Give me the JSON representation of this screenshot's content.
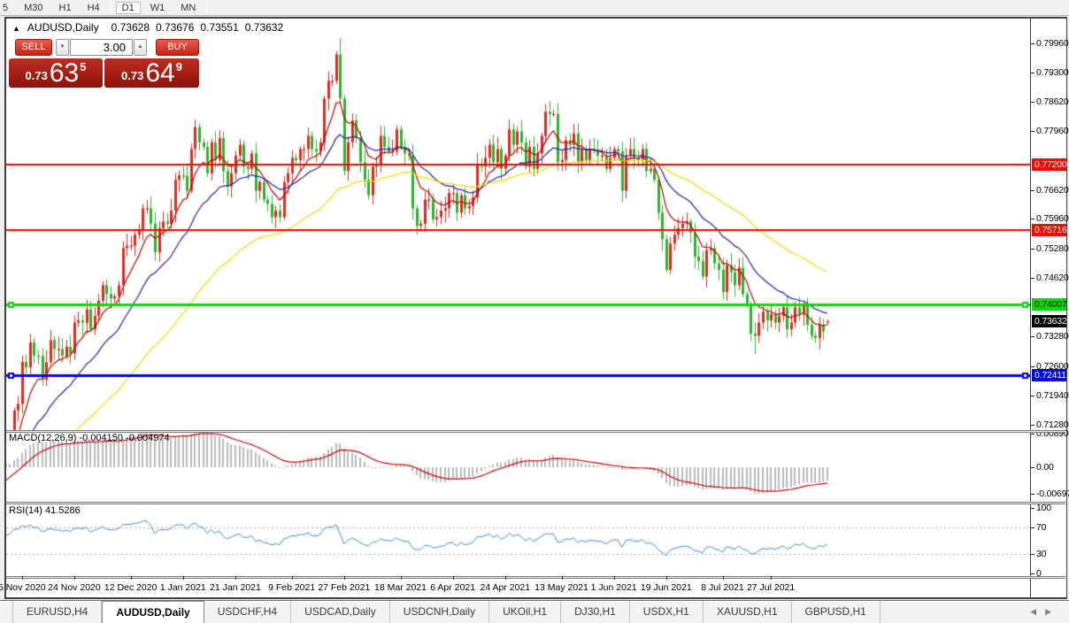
{
  "toolbar": {
    "timeframes": [
      "5",
      "M30",
      "H1",
      "H4",
      "D1",
      "W1",
      "MN"
    ],
    "selected": "D1"
  },
  "chart_header": {
    "collapse_icon": "▲",
    "symbol": "AUDUSD,Daily",
    "open": "0.73628",
    "high": "0.73676",
    "low": "0.73551",
    "close": "0.73632"
  },
  "trade_panel": {
    "sell_label": "SELL",
    "buy_label": "BUY",
    "volume": "3.00",
    "spin_down_icon": "▼",
    "spin_up_icon": "▲",
    "sell_price": {
      "prefix": "0.73",
      "big": "63",
      "sup": "5",
      "full": "0.73635"
    },
    "buy_price": {
      "prefix": "0.73",
      "big": "64",
      "sup": "9",
      "full": "0.73649"
    }
  },
  "price_axis": {
    "ticks": [
      {
        "t": "0.79960",
        "p": 0.7996
      },
      {
        "t": "0.79300",
        "p": 0.793
      },
      {
        "t": "0.78620",
        "p": 0.7862
      },
      {
        "t": "0.77960",
        "p": 0.7796
      },
      {
        "t": "0.76620",
        "p": 0.7662
      },
      {
        "t": "0.75960",
        "p": 0.7596
      },
      {
        "t": "0.75280",
        "p": 0.7528
      },
      {
        "t": "0.74620",
        "p": 0.7462
      },
      {
        "t": "0.73280",
        "p": 0.7328
      },
      {
        "t": "0.72600",
        "p": 0.726
      },
      {
        "t": "0.71940",
        "p": 0.7194
      },
      {
        "t": "0.71280",
        "p": 0.7128
      }
    ],
    "badges": [
      {
        "t": "0.77200",
        "p": 0.772,
        "bg": "#fe0600",
        "fg": "#ffffff"
      },
      {
        "t": "0.75716",
        "p": 0.75716,
        "bg": "#fe0600",
        "fg": "#ffffff"
      },
      {
        "t": "0.74007",
        "p": 0.74007,
        "bg": "#00dc00",
        "fg": "#000000"
      },
      {
        "t": "0.73632",
        "p": 0.73632,
        "bg": "#000000",
        "fg": "#ffffff"
      },
      {
        "t": "0.72411",
        "p": 0.72411,
        "bg": "#0000f0",
        "fg": "#ffffff"
      }
    ]
  },
  "macd_panel": {
    "label": "MACD(12,26,9) -0.004150 -0.004974",
    "ticks": [
      {
        "t": "0.008903",
        "v": 0.008903
      },
      {
        "t": "0.00",
        "v": 0
      },
      {
        "t": "-0.00697",
        "v": -0.00697
      }
    ]
  },
  "rsi_panel": {
    "label": "RSI(14) 41.5286",
    "ticks": [
      {
        "t": "100",
        "v": 100
      },
      {
        "t": "70",
        "v": 70
      },
      {
        "t": "30",
        "v": 30
      },
      {
        "t": "0",
        "v": 0
      }
    ],
    "levels": [
      70,
      30
    ],
    "value": 41.5286
  },
  "tabs": {
    "items": [
      "EURUSD,H4",
      "AUDUSD,Daily",
      "USDCHF,H4",
      "USDCAD,Daily",
      "USDCNH,Daily",
      "UKOil,H1",
      "DJ30,H1",
      "USDX,H1",
      "XAUUSD,H1",
      "GBPUSD,H1"
    ],
    "active_index": 1,
    "nav_left_icon": "◀",
    "nav_right_icon": "▶"
  },
  "chart_data": {
    "type": "candlestick",
    "symbol": "AUDUSD",
    "timeframe": "Daily",
    "grid": false,
    "y_range": {
      "top": 0.80302,
      "bottom": 0.71119
    },
    "last_candle": {
      "o": 0.73628,
      "h": 0.73676,
      "l": 0.73551,
      "c": 0.73632
    },
    "closes": [
      0.7028,
      0.7053,
      0.716,
      0.7175,
      0.7271,
      0.7258,
      0.7315,
      0.7285,
      0.7284,
      0.723,
      0.727,
      0.732,
      0.73,
      0.73,
      0.7285,
      0.7305,
      0.729,
      0.736,
      0.7365,
      0.736,
      0.739,
      0.7345,
      0.7375,
      0.741,
      0.7445,
      0.7425,
      0.7415,
      0.742,
      0.7445,
      0.753,
      0.7535,
      0.7535,
      0.756,
      0.757,
      0.762,
      0.762,
      0.7585,
      0.752,
      0.7575,
      0.759,
      0.7585,
      0.7615,
      0.7685,
      0.7695,
      0.7694,
      0.766,
      0.7755,
      0.7805,
      0.777,
      0.776,
      0.77,
      0.777,
      0.773,
      0.778,
      0.7705,
      0.767,
      0.77,
      0.774,
      0.7765,
      0.7715,
      0.771,
      0.7745,
      0.766,
      0.768,
      0.764,
      0.763,
      0.76,
      0.7615,
      0.76,
      0.768,
      0.77,
      0.7735,
      0.773,
      0.7755,
      0.7755,
      0.7785,
      0.7755,
      0.775,
      0.777,
      0.787,
      0.791,
      0.791,
      0.797,
      0.787,
      0.7705,
      0.777,
      0.782,
      0.778,
      0.7725,
      0.7685,
      0.765,
      0.7715,
      0.772,
      0.7785,
      0.776,
      0.775,
      0.775,
      0.78,
      0.776,
      0.7745,
      0.774,
      0.762,
      0.758,
      0.7585,
      0.764,
      0.764,
      0.7595,
      0.76,
      0.7615,
      0.762,
      0.7655,
      0.7655,
      0.761,
      0.765,
      0.762,
      0.7625,
      0.7645,
      0.772,
      0.7715,
      0.7735,
      0.7765,
      0.7725,
      0.7755,
      0.771,
      0.774,
      0.78,
      0.7765,
      0.7795,
      0.777,
      0.7715,
      0.776,
      0.771,
      0.7745,
      0.7785,
      0.784,
      0.7835,
      0.7835,
      0.7725,
      0.773,
      0.7775,
      0.7765,
      0.779,
      0.7725,
      0.7755,
      0.773,
      0.7755,
      0.775,
      0.774,
      0.774,
      0.771,
      0.7735,
      0.7755,
      0.775,
      0.766,
      0.774,
      0.7755,
      0.7735,
      0.773,
      0.7755,
      0.7705,
      0.771,
      0.7685,
      0.761,
      0.755,
      0.748,
      0.754,
      0.756,
      0.7575,
      0.7585,
      0.759,
      0.7565,
      0.751,
      0.75,
      0.7465,
      0.7525,
      0.753,
      0.7495,
      0.748,
      0.743,
      0.749,
      0.7475,
      0.7445,
      0.7485,
      0.7425,
      0.74,
      0.7335,
      0.733,
      0.736,
      0.7385,
      0.7365,
      0.738,
      0.736,
      0.7375,
      0.7395,
      0.7345,
      0.736,
      0.7395,
      0.738,
      0.74,
      0.7355,
      0.733,
      0.7325,
      0.7355,
      0.734,
      0.73632
    ],
    "overrides": [
      {
        "i": 83,
        "h": 0.8007
      },
      {
        "i": 186,
        "l": 0.7289
      },
      {
        "i": 204,
        "o": 0.73628,
        "h": 0.73676,
        "l": 0.73551,
        "c": 0.73632
      }
    ],
    "x_labels": [
      {
        "text": "5 Nov 2020",
        "i": 4
      },
      {
        "text": "24 Nov 2020",
        "i": 17
      },
      {
        "text": "12 Dec 2020",
        "i": 31
      },
      {
        "text": "1 Jan 2021",
        "i": 44
      },
      {
        "text": "21 Jan 2021",
        "i": 57
      },
      {
        "text": "9 Feb 2021",
        "i": 71
      },
      {
        "text": "27 Feb 2021",
        "i": 84
      },
      {
        "text": "18 Mar 2021",
        "i": 98
      },
      {
        "text": "6 Apr 2021",
        "i": 111
      },
      {
        "text": "24 Apr 2021",
        "i": 124
      },
      {
        "text": "13 May 2021",
        "i": 138
      },
      {
        "text": "1 Jun 2021",
        "i": 151
      },
      {
        "text": "19 Jun 2021",
        "i": 164
      },
      {
        "text": "8 Jul 2021",
        "i": 178
      },
      {
        "text": "27 Jul 2021",
        "i": 190
      }
    ],
    "hlines": [
      {
        "price": 0.772,
        "color": "#fe0600",
        "w": 2,
        "selected": false
      },
      {
        "price": 0.75716,
        "color": "#fe0600",
        "w": 2,
        "selected": false
      },
      {
        "price": 0.74007,
        "color": "#00dc00",
        "w": 3,
        "selected": true
      },
      {
        "price": 0.72411,
        "color": "#0000f0",
        "w": 3,
        "selected": true
      }
    ],
    "candle_colors": {
      "bull": "#e02a1e",
      "bear": "#2eb32e"
    },
    "moving_averages": [
      {
        "period": 8,
        "color": "#c00000",
        "seed": 0.706
      },
      {
        "period": 21,
        "color": "#2020b4",
        "seed": 0.701
      },
      {
        "period": 55,
        "color": "#f2d800",
        "seed": 0.697
      }
    ],
    "macd": {
      "fast": 12,
      "slow": 26,
      "signal": 9,
      "main": -0.00415,
      "signal_value": -0.004974,
      "bar_color": "#b9b9b9",
      "line_color": "#d40000",
      "seed_fast": 0.7045,
      "seed_slow": 0.7035,
      "seed_signal": -0.0045
    },
    "rsi": {
      "period": 14,
      "color": "#3e8ed0",
      "seed_gain": 0.0025,
      "seed_loss": 0.0018
    }
  }
}
